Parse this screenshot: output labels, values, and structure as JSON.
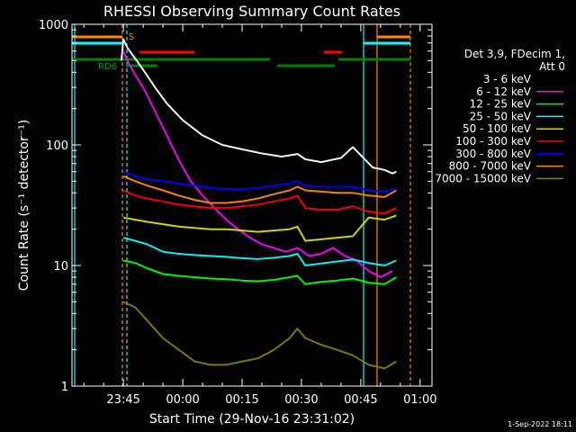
{
  "chart_data": {
    "type": "line",
    "title": "RHESSI Observing Summary Count Rates",
    "xlabel": "Start Time (29-Nov-16 23:31:02)",
    "ylabel": "Count Rate (s⁻¹ detector⁻¹)",
    "footer": "1-Sep-2022 18:11",
    "y_scale": "log",
    "ylim": [
      1,
      1000
    ],
    "xlim_minutes": [
      -13.0,
      78.0
    ],
    "x_ticks": [
      {
        "m": 0,
        "label": "23:45"
      },
      {
        "m": 15,
        "label": "00:00"
      },
      {
        "m": 30,
        "label": "00:15"
      },
      {
        "m": 45,
        "label": "00:30"
      },
      {
        "m": 60,
        "label": "00:45"
      },
      {
        "m": 75,
        "label": "01:00"
      }
    ],
    "y_ticks": [
      {
        "v": 1,
        "label": "1"
      },
      {
        "v": 10,
        "label": "10"
      },
      {
        "v": 100,
        "label": "100"
      },
      {
        "v": 1000,
        "label": "1000"
      }
    ],
    "legend": {
      "placement": "top-right",
      "header": [
        "Det 3,9, FDecim 1,",
        "Att 0"
      ],
      "entries": [
        {
          "label": "3 - 6 keV",
          "color": "#000000"
        },
        {
          "label": "6 - 12 keV",
          "color": "#ff00ff"
        },
        {
          "label": "12 - 25 keV",
          "color": "#00ff00"
        },
        {
          "label": "25 - 50 keV",
          "color": "#00ffff"
        },
        {
          "label": "50 - 100 keV",
          "color": "#dddd00"
        },
        {
          "label": "100 - 300 keV",
          "color": "#ff0000"
        },
        {
          "label": "300 - 800 keV",
          "color": "#0000ff"
        },
        {
          "label": "800 - 7000 keV",
          "color": "#ff8c00"
        },
        {
          "label": "7000 - 15000 keV",
          "color": "#808000"
        }
      ]
    },
    "annotations": [
      {
        "text": "S",
        "color": "#ff8c00"
      },
      {
        "text": "RD6",
        "color": "#008000"
      }
    ],
    "series": [
      {
        "name": "3 - 6 keV",
        "color": "#000000",
        "x": [
          -0.5,
          0,
          1,
          3,
          5,
          8,
          11,
          15,
          20,
          25,
          30,
          35,
          40,
          44,
          46,
          50,
          55,
          58,
          60,
          63,
          66,
          68,
          69
        ],
        "y": [
          500,
          750,
          640,
          520,
          420,
          300,
          220,
          160,
          120,
          100,
          92,
          85,
          80,
          84,
          76,
          72,
          78,
          96,
          82,
          65,
          62,
          58,
          60
        ]
      },
      {
        "name": "6 - 12 keV",
        "color": "#ff00ff",
        "x": [
          0,
          1,
          3,
          5,
          8,
          11,
          14,
          17,
          20,
          23,
          26,
          29,
          32,
          35,
          38,
          41,
          44,
          47,
          50,
          53,
          56,
          59,
          62,
          65,
          68
        ],
        "y": [
          600,
          500,
          380,
          300,
          190,
          120,
          75,
          50,
          38,
          30,
          24,
          20,
          17,
          15,
          14,
          13,
          14,
          12,
          12.5,
          14,
          12,
          11,
          9,
          8,
          9
        ]
      },
      {
        "name": "12 - 25 keV",
        "color": "#00ff00",
        "x": [
          0,
          3,
          6,
          10,
          14,
          18,
          22,
          26,
          30,
          34,
          38,
          42,
          44,
          46,
          50,
          54,
          58,
          62,
          66,
          69
        ],
        "y": [
          11,
          10.5,
          9.5,
          8.5,
          8.2,
          8,
          7.8,
          7.7,
          7.5,
          7.4,
          7.6,
          8,
          8.2,
          7,
          7.3,
          7.5,
          7.8,
          7.2,
          7,
          8
        ]
      },
      {
        "name": "25 - 50 keV",
        "color": "#00ffff",
        "x": [
          0,
          3,
          6,
          10,
          14,
          18,
          22,
          26,
          30,
          34,
          38,
          42,
          44,
          46,
          50,
          54,
          58,
          62,
          66,
          69
        ],
        "y": [
          17,
          16,
          15,
          13,
          12.5,
          12.2,
          12,
          11.8,
          11.5,
          11.3,
          11.6,
          12,
          12.5,
          10,
          10.4,
          10.8,
          11.2,
          10.5,
          10,
          11
        ]
      },
      {
        "name": "50 - 100 keV",
        "color": "#dddd00",
        "x": [
          0,
          3,
          6,
          10,
          14,
          18,
          22,
          26,
          30,
          34,
          38,
          42,
          44,
          46,
          50,
          54,
          58,
          62,
          66,
          69
        ],
        "y": [
          25,
          24,
          23,
          22,
          21,
          20.5,
          20,
          20,
          19.5,
          19,
          19.5,
          20,
          21,
          16,
          16.5,
          17,
          17.5,
          25,
          24,
          26
        ]
      },
      {
        "name": "100 - 300 keV",
        "color": "#ff0000",
        "x": [
          0,
          3,
          6,
          10,
          14,
          18,
          22,
          26,
          30,
          34,
          38,
          42,
          44,
          46,
          50,
          54,
          58,
          62,
          66,
          69
        ],
        "y": [
          42,
          38,
          36,
          34,
          32,
          31,
          30,
          30,
          31,
          32,
          34,
          36,
          38,
          30,
          29,
          29,
          31,
          28,
          27,
          30
        ]
      },
      {
        "name": "300 - 800 keV",
        "color": "#0000ff",
        "x": [
          0,
          3,
          6,
          10,
          14,
          18,
          22,
          26,
          30,
          34,
          38,
          42,
          44,
          46,
          50,
          54,
          58,
          62,
          66,
          69
        ],
        "y": [
          60,
          55,
          52,
          50,
          48,
          46,
          44,
          43,
          43,
          44,
          46,
          48,
          50,
          46,
          45,
          45,
          45,
          42,
          41,
          44
        ]
      },
      {
        "name": "800 - 7000 keV",
        "color": "#ff8c00",
        "x": [
          0,
          3,
          6,
          10,
          14,
          18,
          22,
          26,
          30,
          34,
          38,
          42,
          44,
          46,
          50,
          54,
          58,
          62,
          66,
          69
        ],
        "y": [
          55,
          50,
          46,
          42,
          38,
          35,
          33,
          33,
          34,
          36,
          39,
          42,
          45,
          42,
          41,
          40,
          40,
          38,
          37,
          42
        ]
      },
      {
        "name": "7000 - 15000 keV",
        "color": "#808000",
        "x": [
          0,
          3,
          6,
          10,
          14,
          18,
          22,
          26,
          30,
          34,
          38,
          42,
          44,
          46,
          50,
          54,
          58,
          62,
          66,
          69
        ],
        "y": [
          5,
          4.5,
          3.5,
          2.5,
          2,
          1.6,
          1.5,
          1.5,
          1.6,
          1.7,
          2,
          2.5,
          3,
          2.5,
          2.2,
          2,
          1.8,
          1.5,
          1.4,
          1.6
        ]
      }
    ]
  }
}
